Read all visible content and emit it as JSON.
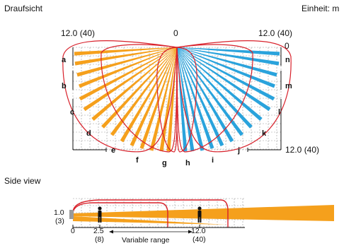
{
  "top_view": {
    "title": "Draufsicht",
    "unit": "Einheit: m",
    "label_left": "12.0 (40)",
    "label_center": "0",
    "label_right": "12.0 (40)",
    "label_right_zero": "0",
    "label_bottom_right": "12.0 (40)",
    "zones": [
      "a",
      "b",
      "c",
      "d",
      "e",
      "f",
      "g",
      "h",
      "i",
      "j",
      "k",
      "l",
      "m",
      "n"
    ],
    "colors": {
      "left_zones": "#f5a01c",
      "right_zones": "#2aa3dc",
      "outline": "#d8202a",
      "grid": "#9a9a9a"
    }
  },
  "side_view": {
    "title": "Side view",
    "height_value": "1.0",
    "height_unit": "(3)",
    "x_zero": "0",
    "x_near": "2.5",
    "x_near_unit": "(8)",
    "x_far": "12.0",
    "x_far_unit": "(40)",
    "range_label": "Variable range"
  }
}
